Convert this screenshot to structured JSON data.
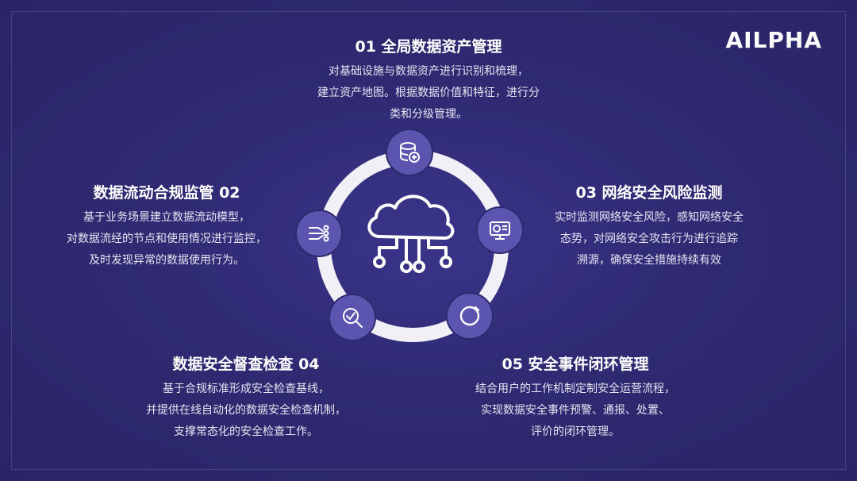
{
  "brand": {
    "logo": "AILPHA"
  },
  "items": [
    {
      "title": "01 全局数据资产管理",
      "lines": [
        "对基础设施与数据资产进行识别和梳理，",
        "建立资产地图。根据数据价值和特征，进行分",
        "类和分级管理。"
      ]
    },
    {
      "title": "数据流动合规监管 02",
      "lines": [
        "基于业务场景建立数据流动模型，",
        "对数据流经的节点和使用情况进行监控，",
        "及时发现异常的数据使用行为。"
      ]
    },
    {
      "title": "03 网络安全风险监测",
      "lines": [
        "实时监测网络安全风险，感知网络安全",
        "态势，对网络安全攻击行为进行追踪",
        "溯源，确保安全措施持续有效"
      ]
    },
    {
      "title": "数据安全督查检查 04",
      "lines": [
        "基于合规标准形成安全检查基线，",
        "并提供在线自动化的数据安全检查机制，",
        "支撑常态化的安全检查工作。"
      ]
    },
    {
      "title": "05 安全事件闭环管理",
      "lines": [
        "结合用户的工作机制定制安全运营流程，",
        "实现数据安全事件预警、通报、处置、",
        "评价的闭环管理。"
      ]
    }
  ],
  "icons": [
    "database-icon",
    "data-flow-icon",
    "monitor-chart-icon",
    "magnifier-check-icon",
    "refresh-cycle-icon",
    "cloud-network-icon"
  ]
}
